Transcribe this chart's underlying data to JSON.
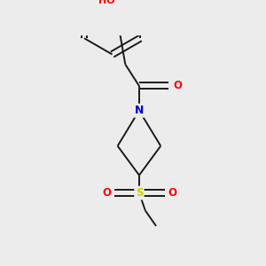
{
  "bg_color": "#ececec",
  "bond_color": "#1a1a1a",
  "atom_colors": {
    "O": "#ff0000",
    "N": "#0000cc",
    "S": "#cccc00",
    "C": "#1a1a1a",
    "H": "#708090"
  },
  "font_size": 8.5,
  "line_width": 1.4
}
